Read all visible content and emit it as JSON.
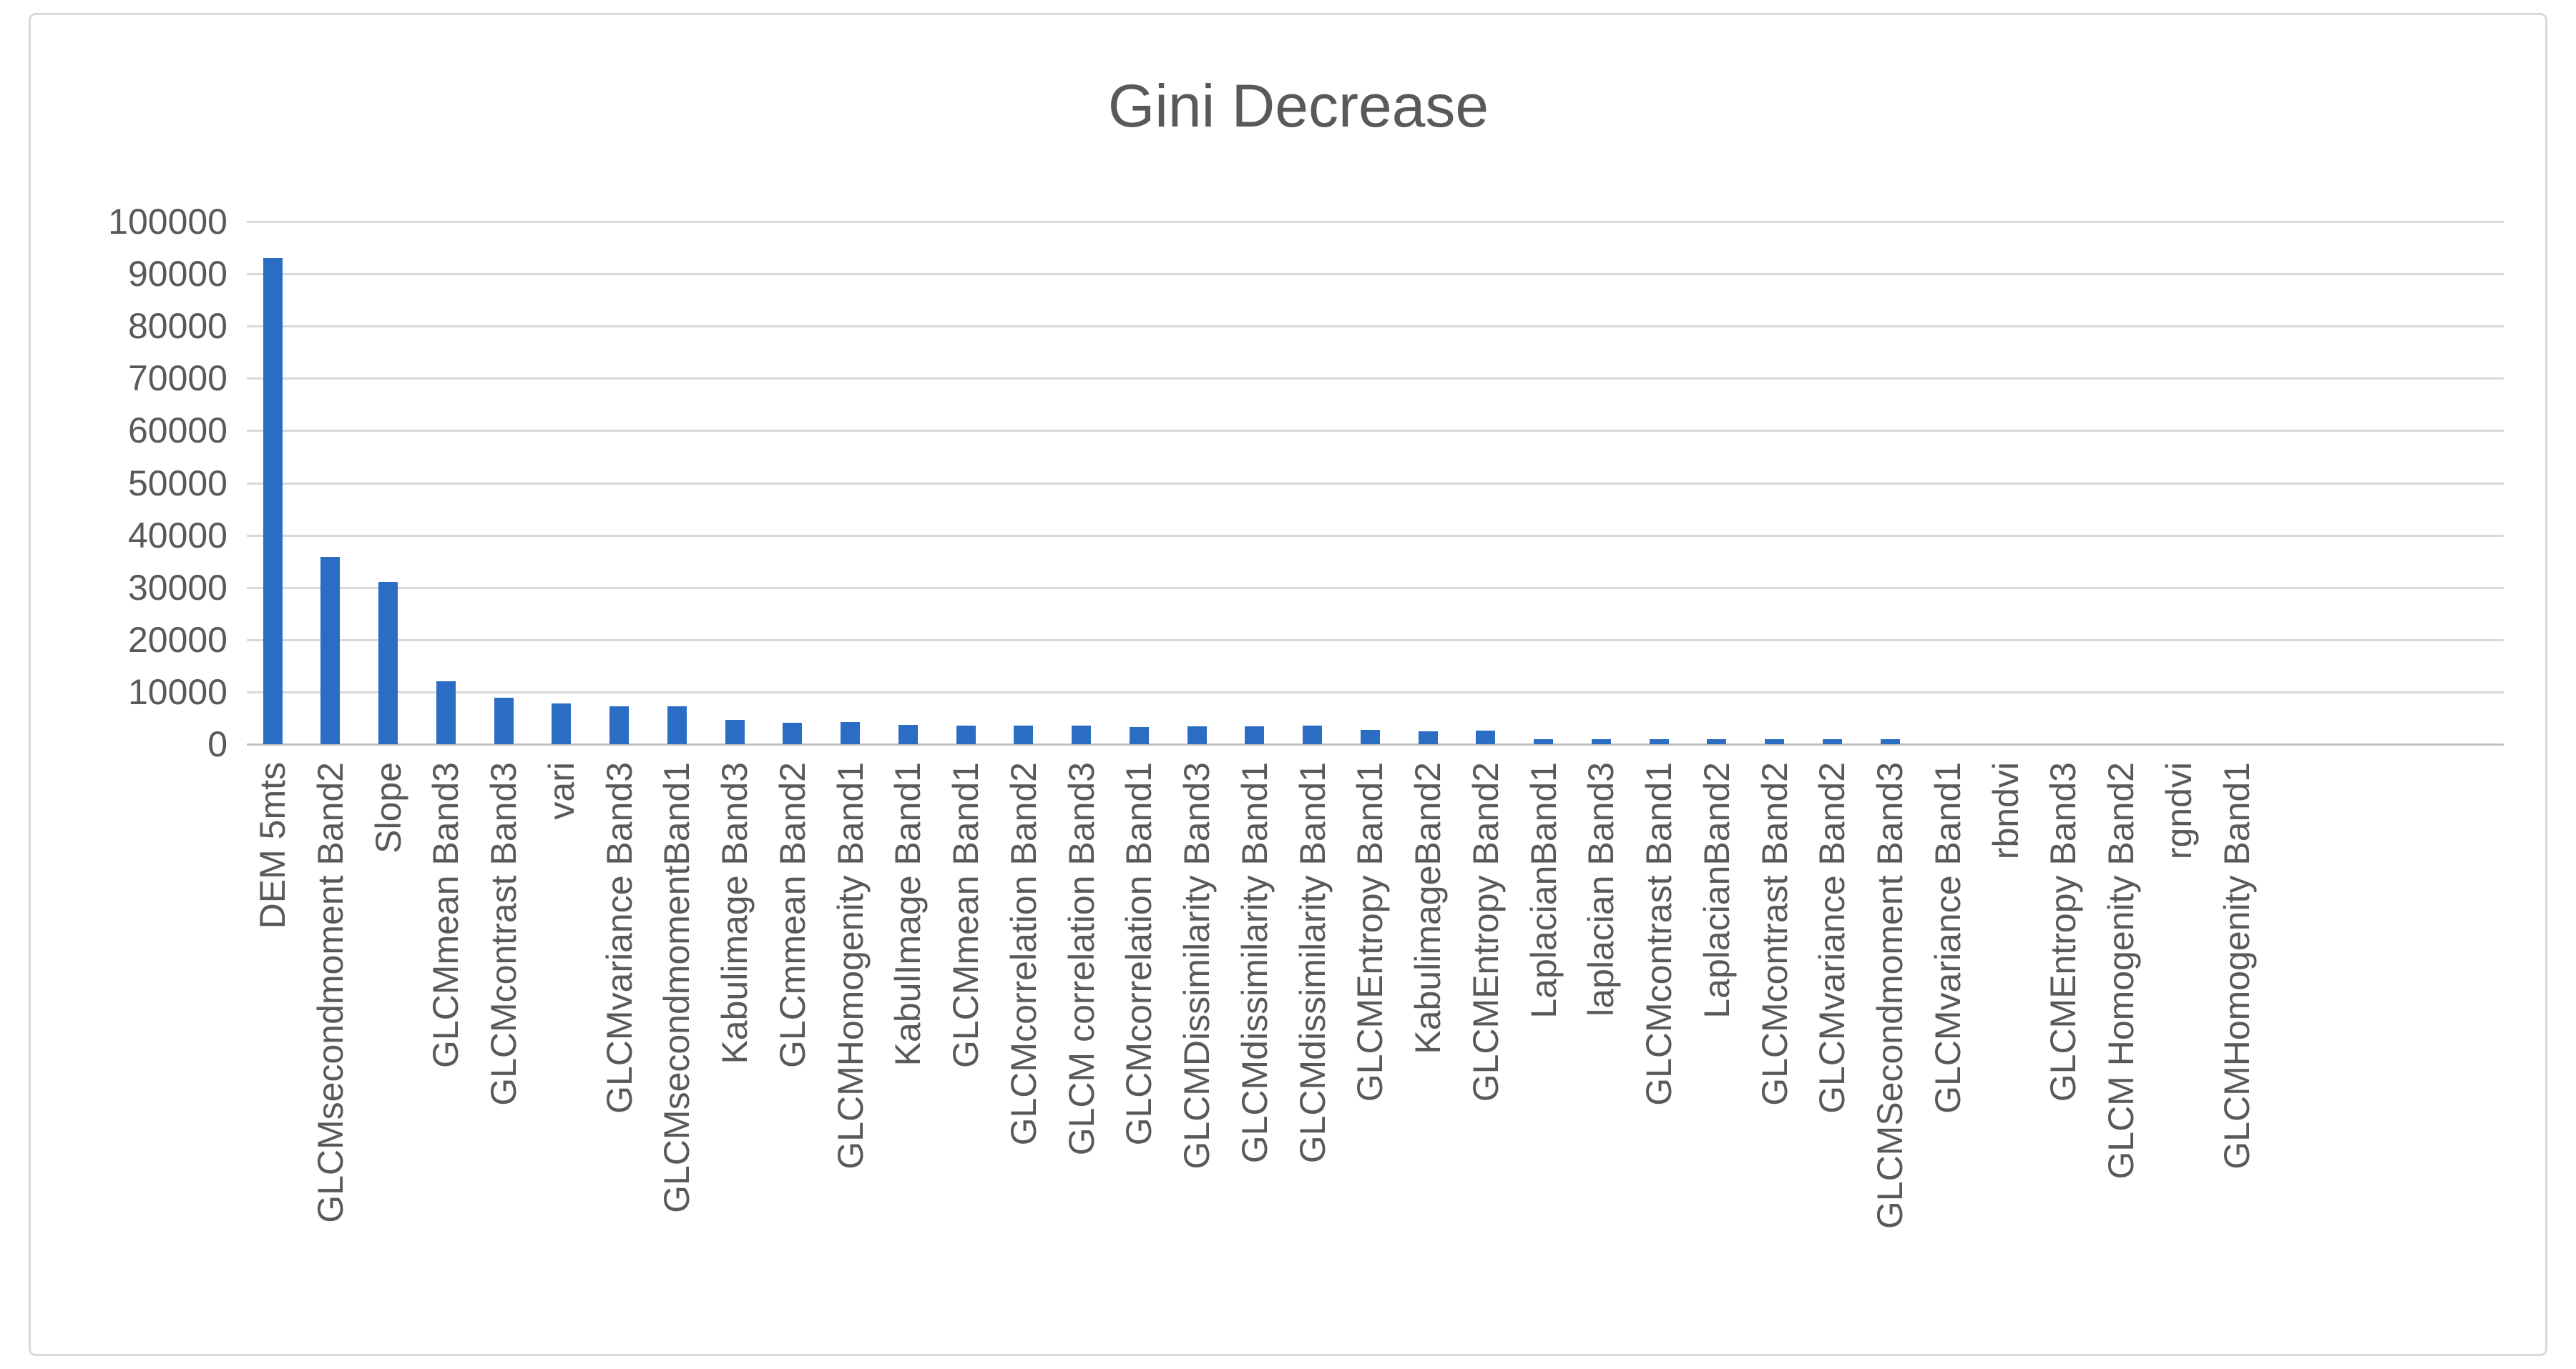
{
  "figure": {
    "kind": "embedded-excel-chart-figure",
    "background_color": "#ffffff",
    "frame_border_color": "#d9d9d9"
  },
  "chart_data": {
    "type": "bar",
    "title": "Gini Decrease",
    "title_color": "#595959",
    "bar_color": "#2b6cc4",
    "gridline_color": "#d9d9d9",
    "axis_line_color": "#c0c0c0",
    "axis_text_color": "#595959",
    "legend": "none",
    "grid": "horizontal",
    "ylim": [
      0,
      100000
    ],
    "ytick_step": 10000,
    "ytick_labels": [
      "0",
      "10000",
      "20000",
      "30000",
      "40000",
      "50000",
      "60000",
      "70000",
      "80000",
      "90000",
      "100000"
    ],
    "categories": [
      "DEM 5mts",
      "GLCMsecondmoment Band2",
      "Slope",
      "GLCMmean Band3",
      "GLCMcontrast Band3",
      "vari",
      "GLCMvariance Band3",
      "GLCMsecondmomentBand1",
      "Kabulimage Band3",
      "GLCmmean Band2",
      "GLCMHomogenity Band1",
      "KabulImage Band1",
      "GLCMmean Band1",
      "GLCMcorrelation Band2",
      "GLCM correlation Band3",
      "GLCMcorrelation Band1",
      "GLCMDissimilarity Band3",
      "GLCMdissimilarity Band1",
      "GLCMdissimilarity Band1",
      "GLCMEntropy Band1",
      "KabulimageBand2",
      "GLCMEntropy Band2",
      "LaplacianBand1",
      "laplacian Band3",
      "GLCMcontrast Band1",
      "LaplacianBand2",
      "GLCMcontrast Band2",
      "GLCMvariance Band2",
      "GLCMSecondmoment Band3",
      "GLCMvariance Band1",
      "rbndvi",
      "GLCMEntropy Band3",
      "GLCM Homogenity Band2",
      "rgndvi",
      "GLCMHomogenity Band1"
    ],
    "values": [
      93000,
      35800,
      31000,
      12000,
      8900,
      7800,
      7200,
      7200,
      4600,
      4100,
      4200,
      3650,
      3500,
      3500,
      3600,
      3300,
      3400,
      3400,
      3500,
      2700,
      2400,
      2600,
      1000,
      900,
      1000,
      950,
      1000,
      900,
      900,
      0,
      0,
      0,
      0,
      0,
      0
    ],
    "layout_hint": "trailing empty category slots after last labeled category; gridlines extend beyond last bar"
  }
}
